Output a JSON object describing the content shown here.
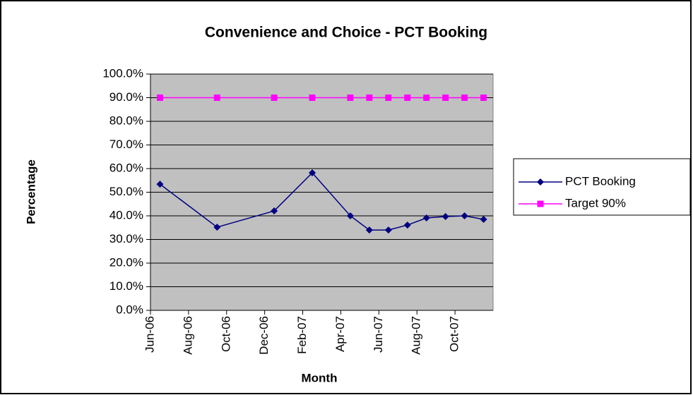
{
  "chart_data": {
    "type": "line",
    "title": "Convenience and Choice - PCT Booking",
    "x_label": "Month",
    "y_label": "Percentage",
    "x": [
      "Jun-06",
      "Sep-06",
      "Dec-06",
      "Feb-07",
      "Apr-07",
      "May-07",
      "Jun-07",
      "Jul-07",
      "Aug-07",
      "Sep-07",
      "Oct-07",
      "Nov-07"
    ],
    "series": [
      {
        "name": "PCT Booking",
        "color": "#000080",
        "marker": "diamond",
        "values": [
          53.4,
          35.2,
          42.1,
          58.2,
          40.0,
          34.0,
          34.0,
          36.1,
          39.1,
          39.7,
          40.0,
          38.5
        ]
      },
      {
        "name": "Target 90%",
        "color": "#ff00ff",
        "marker": "square",
        "values": [
          90,
          90,
          90,
          90,
          90,
          90,
          90,
          90,
          90,
          90,
          90,
          90
        ]
      }
    ],
    "xlim": [
      "Jun-06",
      "Dec-07"
    ],
    "xticks": [
      "Jun-06",
      "Aug-06",
      "Oct-06",
      "Dec-06",
      "Feb-07",
      "Apr-07",
      "Jun-07",
      "Aug-07",
      "Oct-07"
    ],
    "ylim": [
      0,
      100
    ],
    "yticks": [
      {
        "value": 0,
        "label": "0.0%"
      },
      {
        "value": 10,
        "label": "10.0%"
      },
      {
        "value": 20,
        "label": "20.0%"
      },
      {
        "value": 30,
        "label": "30.0%"
      },
      {
        "value": 40,
        "label": "40.0%"
      },
      {
        "value": 50,
        "label": "50.0%"
      },
      {
        "value": 60,
        "label": "60.0%"
      },
      {
        "value": 70,
        "label": "70.0%"
      },
      {
        "value": 80,
        "label": "80.0%"
      },
      {
        "value": 90,
        "label": "90.0%"
      },
      {
        "value": 100,
        "label": "100.0%"
      }
    ],
    "grid": true,
    "legend": "right",
    "plot_background": "#c0c0c0"
  }
}
